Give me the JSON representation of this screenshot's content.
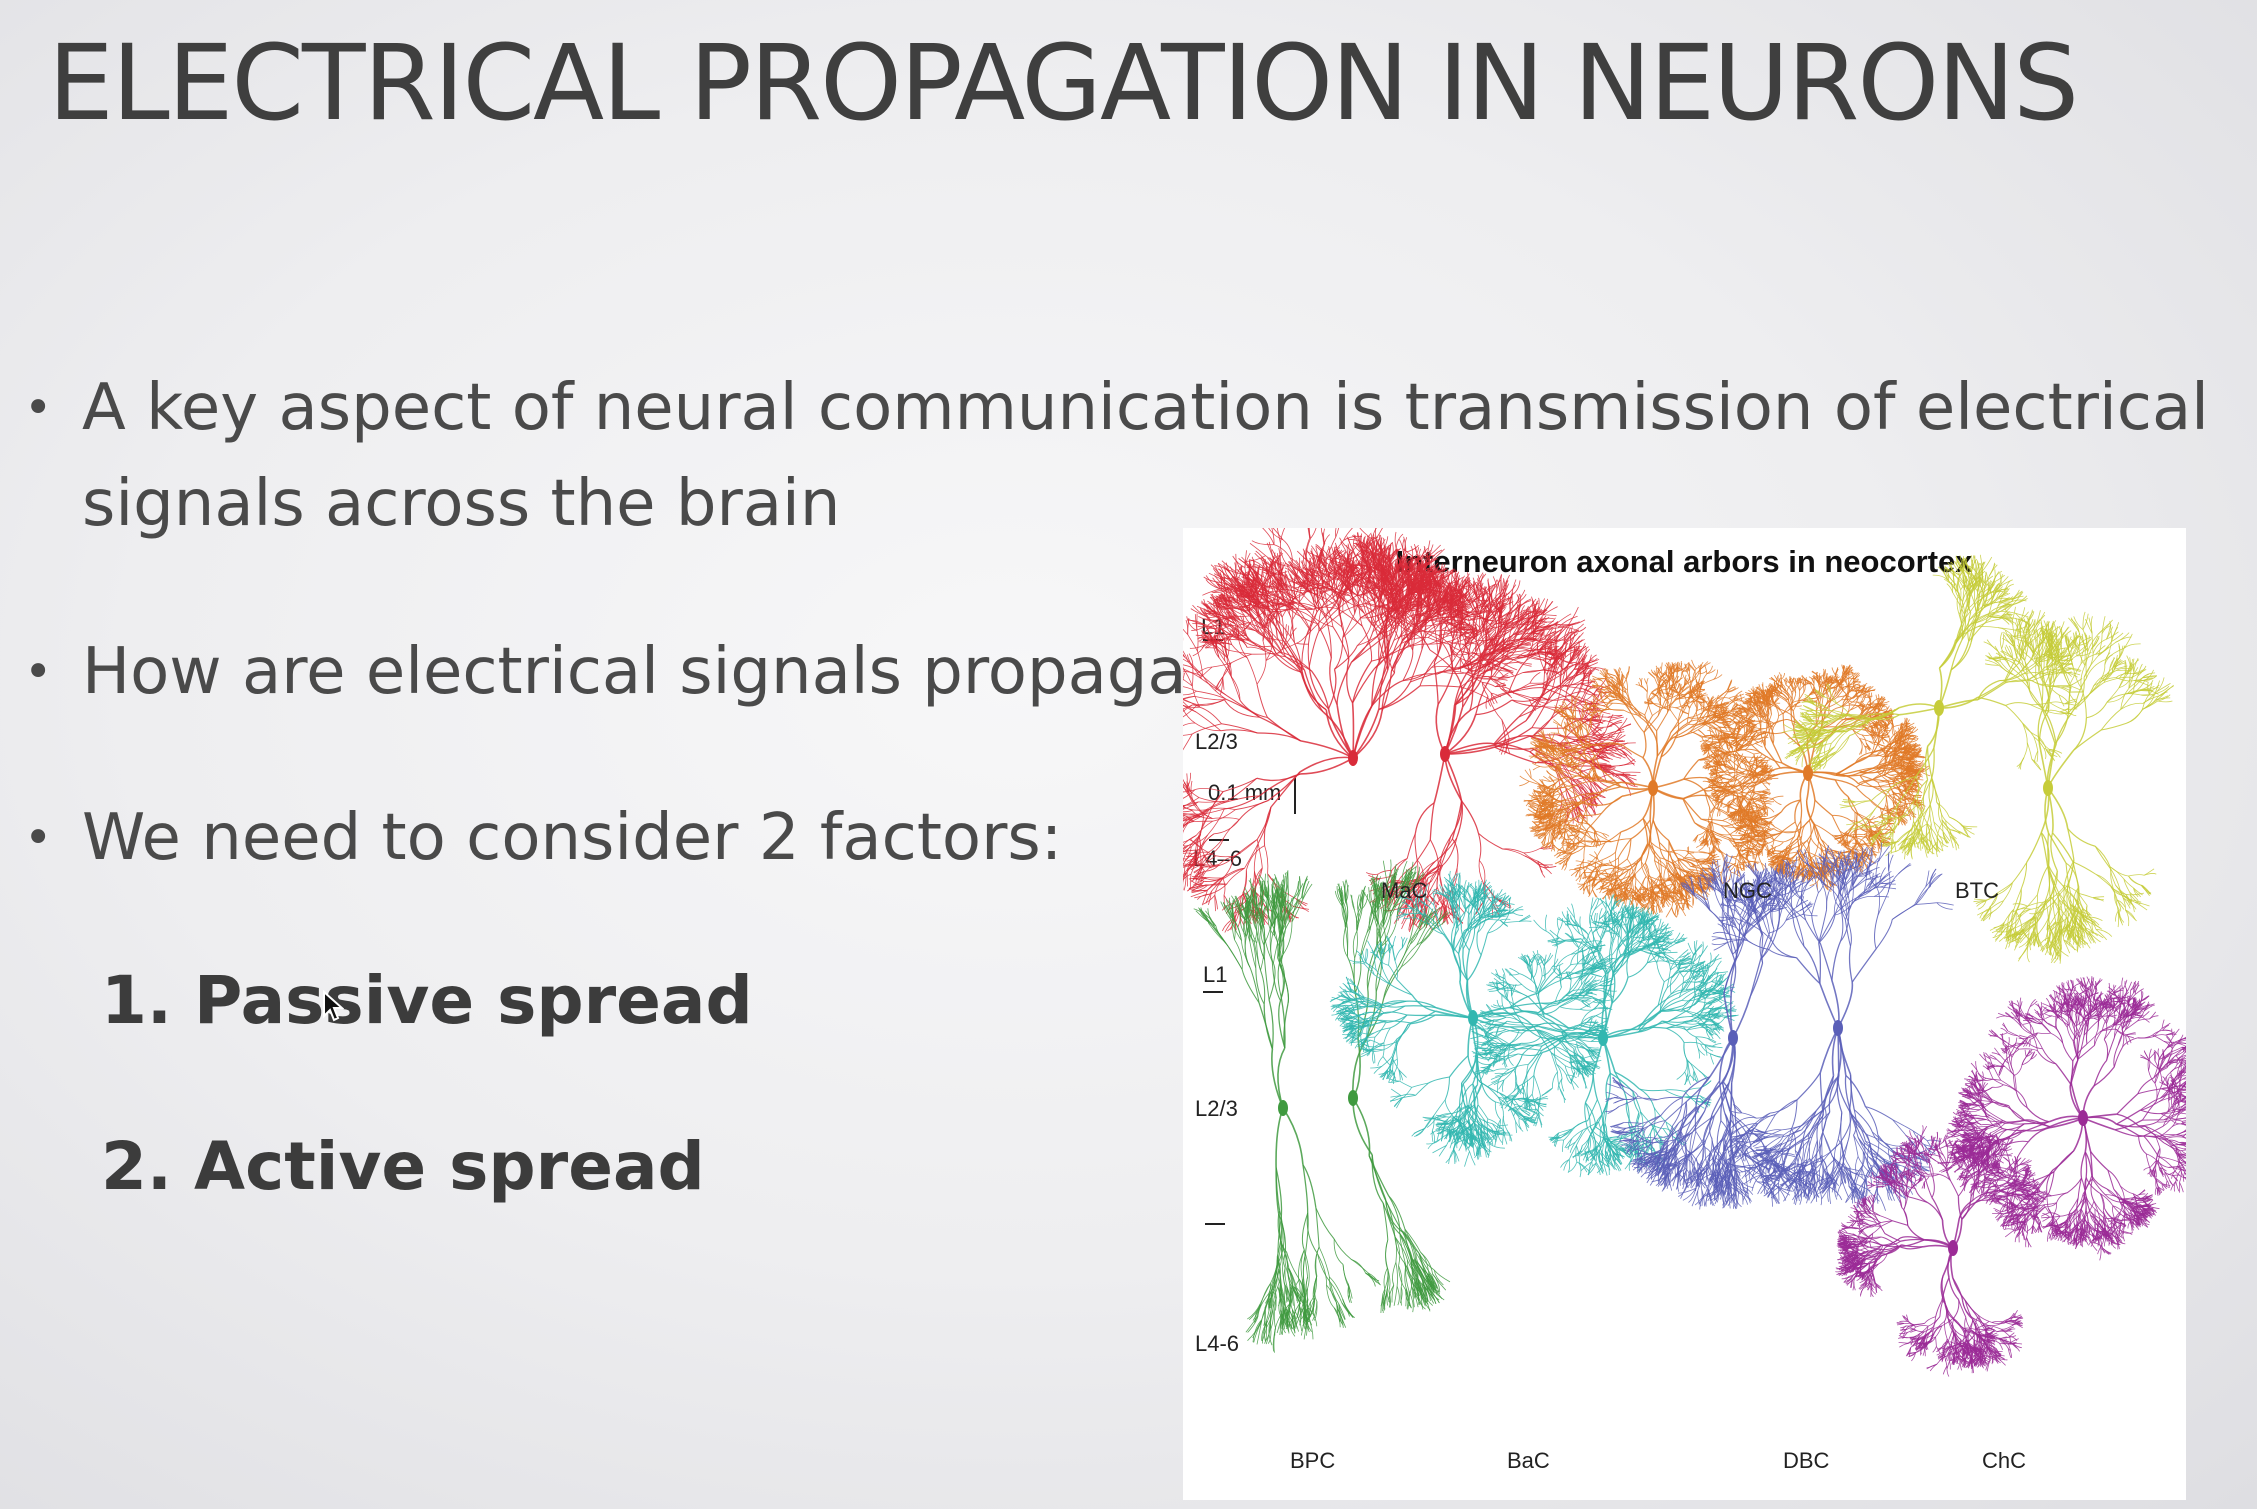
{
  "slide": {
    "title": "ELECTRICAL PROPAGATION IN NEURONS",
    "bullets": [
      "A key aspect of neural communication is transmission of electrical",
      "signals across the brain",
      "How are electrical signals propagated?",
      "We need to consider 2 factors:"
    ],
    "factors": [
      {
        "number": "1.",
        "label": "Passive spread"
      },
      {
        "number": "2.",
        "label": "Active spread"
      }
    ]
  },
  "figure": {
    "title": "Interneuron axonal arbors in neocortex",
    "scale_bar": "0.1 mm",
    "top_layers": [
      "L1",
      "L2/3",
      "L4–6"
    ],
    "bottom_layers": [
      "L1",
      "L2/3",
      "L4-6"
    ],
    "top_cells": [
      {
        "name": "MaC",
        "color": "#d92b3a"
      },
      {
        "name": "NGC",
        "color": "#e07a28"
      },
      {
        "name": "BTC",
        "color": "#c6cc3a"
      }
    ],
    "bottom_cells": [
      {
        "name": "BPC",
        "color": "#3f9a3f"
      },
      {
        "name": "BaC",
        "color": "#32b7b0"
      },
      {
        "name": "DBC",
        "color": "#5a5fb8"
      },
      {
        "name": "ChC",
        "color": "#9b2b96"
      }
    ]
  }
}
